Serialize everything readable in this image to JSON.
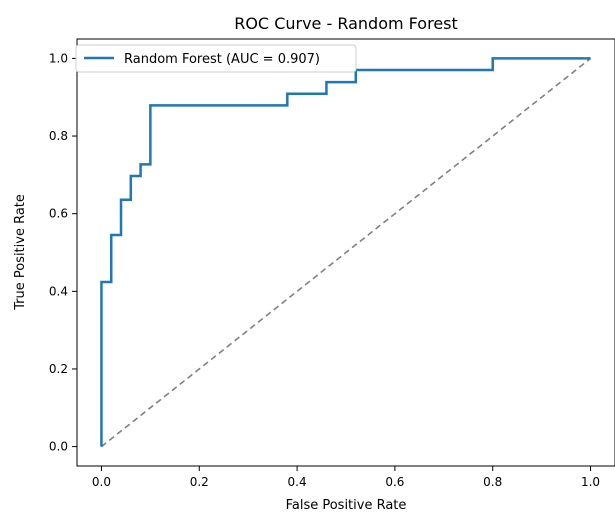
{
  "chart_data": {
    "type": "line",
    "title": "ROC Curve - Random Forest",
    "xlabel": "False Positive Rate",
    "ylabel": "True Positive Rate",
    "xlim": [
      -0.05,
      1.05
    ],
    "ylim": [
      -0.05,
      1.05
    ],
    "xticks": [
      0.0,
      0.2,
      0.4,
      0.6,
      0.8,
      1.0
    ],
    "xtick_labels": [
      "0.0",
      "0.2",
      "0.4",
      "0.6",
      "0.8",
      "1.0"
    ],
    "yticks": [
      0.0,
      0.2,
      0.4,
      0.6,
      0.8,
      1.0
    ],
    "ytick_labels": [
      "0.0",
      "0.2",
      "0.4",
      "0.6",
      "0.8",
      "1.0"
    ],
    "grid": false,
    "legend_position": "upper-left",
    "series": [
      {
        "name": "Random Forest (AUC = 0.907)",
        "color": "#1f77b4",
        "style": "solid",
        "x": [
          0.0,
          0.0,
          0.02,
          0.02,
          0.04,
          0.04,
          0.06,
          0.06,
          0.08,
          0.08,
          0.1,
          0.1,
          0.38,
          0.38,
          0.46,
          0.46,
          0.52,
          0.52,
          0.8,
          0.8,
          1.0
        ],
        "y": [
          0.0,
          0.424,
          0.424,
          0.545,
          0.545,
          0.636,
          0.636,
          0.697,
          0.697,
          0.727,
          0.727,
          0.879,
          0.879,
          0.909,
          0.909,
          0.939,
          0.939,
          0.97,
          0.97,
          1.0,
          1.0
        ]
      },
      {
        "color": "#808080",
        "style": "dashed",
        "x": [
          0.0,
          1.0
        ],
        "y": [
          0.0,
          1.0
        ]
      }
    ]
  }
}
